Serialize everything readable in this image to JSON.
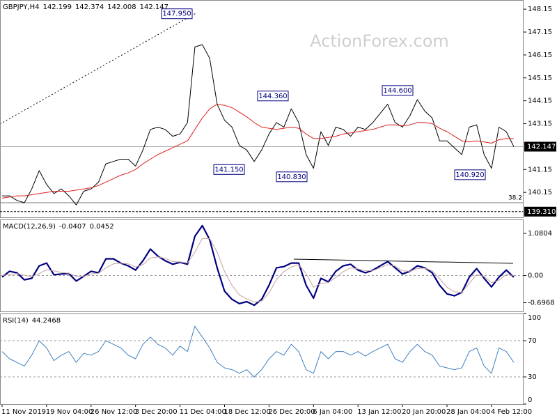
{
  "watermark": "ActionForex.com",
  "chart_data": [
    {
      "type": "line",
      "title": "GBPJPY,H4",
      "ohlc": [
        142.199,
        142.374,
        142.008,
        142.147
      ],
      "categories": [
        "11 Nov 2019",
        null,
        null,
        null,
        null,
        null,
        "19 Nov 04:00",
        null,
        null,
        null,
        null,
        null,
        "26 Nov 12:00",
        null,
        null,
        null,
        null,
        null,
        "3 Dec 20:00",
        null,
        null,
        null,
        null,
        null,
        "11 Dec 04:00",
        null,
        null,
        null,
        null,
        null,
        "18 Dec 12:00",
        null,
        null,
        null,
        null,
        null,
        "26 Dec 20:00",
        null,
        null,
        null,
        null,
        null,
        "6 Jan 04:00",
        null,
        null,
        null,
        null,
        null,
        "13 Jan 12:00",
        null,
        null,
        null,
        null,
        null,
        "20 Jan 20:00",
        null,
        null,
        null,
        null,
        null,
        "28 Jan 04:00",
        null,
        null,
        null,
        null,
        null,
        "4 Feb 12:00",
        null,
        null,
        null
      ],
      "series": [
        {
          "color": "#000000",
          "values": [
            140.0,
            140.0,
            139.8,
            139.7,
            140.3,
            141.1,
            140.5,
            140.1,
            140.3,
            140.0,
            139.6,
            140.2,
            140.3,
            140.6,
            141.4,
            141.5,
            141.6,
            141.6,
            141.3,
            142.0,
            142.9,
            143.0,
            142.9,
            142.6,
            142.7,
            143.2,
            146.5,
            146.6,
            146.0,
            144.0,
            143.3,
            143.0,
            142.2,
            142.0,
            141.5,
            142.0,
            142.7,
            143.2,
            143.0,
            143.8,
            143.2,
            141.8,
            141.2,
            142.8,
            142.2,
            143.0,
            142.9,
            142.6,
            143.0,
            142.9,
            143.2,
            143.6,
            144.0,
            143.2,
            143.0,
            143.5,
            144.2,
            143.7,
            143.4,
            142.4,
            142.4,
            142.1,
            141.8,
            143.0,
            143.1,
            141.8,
            141.2,
            143.0,
            142.8,
            142.15
          ]
        },
        {
          "color": "#e0201c",
          "values": [
            139.9,
            139.95,
            140.0,
            140.0,
            140.05,
            140.1,
            140.15,
            140.2,
            140.2,
            140.2,
            140.25,
            140.3,
            140.35,
            140.45,
            140.6,
            140.75,
            140.9,
            141.0,
            141.15,
            141.4,
            141.6,
            141.8,
            141.95,
            142.1,
            142.25,
            142.4,
            142.9,
            143.4,
            143.8,
            144.0,
            143.95,
            143.85,
            143.65,
            143.45,
            143.2,
            143.0,
            142.95,
            142.9,
            142.95,
            143.0,
            142.95,
            142.7,
            142.5,
            142.5,
            142.55,
            142.6,
            142.7,
            142.75,
            142.8,
            142.85,
            142.9,
            143.0,
            143.1,
            143.1,
            143.05,
            143.1,
            143.2,
            143.2,
            143.15,
            142.95,
            142.8,
            142.6,
            142.4,
            142.35,
            142.4,
            142.35,
            142.3,
            142.45,
            142.5,
            142.5
          ]
        }
      ],
      "ylim": [
        139.06,
        148.55
      ],
      "yticks": [
        148.15,
        147.15,
        146.15,
        145.15,
        144.15,
        143.15,
        141.15,
        140.15
      ],
      "current_price": 142.147,
      "levels": [
        {
          "value": 139.7,
          "label": "38.2"
        },
        {
          "value": 139.31,
          "label": "139.310"
        }
      ],
      "annotations": [
        {
          "value": 147.95,
          "label": "147.950"
        },
        {
          "value": 144.36,
          "label": "144.360"
        },
        {
          "value": 144.6,
          "label": "144.600"
        },
        {
          "value": 141.15,
          "label": "141.150"
        },
        {
          "value": 140.83,
          "label": "140.830"
        },
        {
          "value": 140.92,
          "label": "140.920"
        }
      ]
    },
    {
      "type": "line",
      "title": "MACD(12,26,9)",
      "readings": [
        -0.0407,
        0.0452
      ],
      "series": [
        {
          "color": "#000080",
          "values": [
            -0.04,
            0.11,
            0.07,
            -0.11,
            -0.07,
            0.25,
            0.32,
            0.02,
            0.04,
            0.05,
            -0.14,
            -0.02,
            0.11,
            0.07,
            0.43,
            0.43,
            0.32,
            0.25,
            0.14,
            0.38,
            0.68,
            0.5,
            0.38,
            0.29,
            0.34,
            0.29,
            1.01,
            1.28,
            0.92,
            0.2,
            -0.4,
            -0.61,
            -0.72,
            -0.67,
            -0.76,
            -0.61,
            -0.25,
            0.2,
            0.23,
            0.32,
            0.32,
            -0.25,
            -0.58,
            -0.07,
            -0.16,
            0.11,
            0.25,
            0.29,
            0.14,
            0.07,
            0.14,
            0.25,
            0.36,
            0.2,
            0.04,
            0.11,
            0.25,
            0.2,
            0.07,
            -0.25,
            -0.47,
            -0.52,
            -0.43,
            -0.04,
            0.18,
            -0.07,
            -0.29,
            -0.04,
            0.14,
            -0.04
          ]
        },
        {
          "color": "#c8a0a0",
          "values": [
            0.0,
            0.03,
            0.05,
            0.01,
            -0.03,
            0.05,
            0.15,
            0.12,
            0.08,
            0.06,
            -0.02,
            -0.02,
            0.04,
            0.06,
            0.2,
            0.3,
            0.32,
            0.3,
            0.22,
            0.28,
            0.45,
            0.48,
            0.44,
            0.36,
            0.35,
            0.32,
            0.6,
            0.95,
            0.95,
            0.6,
            0.1,
            -0.25,
            -0.5,
            -0.6,
            -0.68,
            -0.65,
            -0.45,
            -0.1,
            0.1,
            0.22,
            0.28,
            0.05,
            -0.3,
            -0.2,
            -0.18,
            -0.05,
            0.1,
            0.2,
            0.17,
            0.12,
            0.13,
            0.2,
            0.28,
            0.24,
            0.12,
            0.11,
            0.18,
            0.19,
            0.12,
            -0.08,
            -0.3,
            -0.42,
            -0.43,
            -0.2,
            0.02,
            -0.02,
            -0.18,
            -0.12,
            0.03,
            0.0
          ]
        }
      ],
      "ylim": [
        -0.92,
        1.44
      ],
      "yticks": [
        1.0804,
        {
          "value": 0,
          "label": "0.00"
        },
        -0.6968
      ],
      "level_lines": [
        0
      ]
    },
    {
      "type": "line",
      "title": "RSI(14)",
      "readings": [
        44.2468
      ],
      "series": [
        {
          "color": "#3f7fc0",
          "values": [
            58,
            50,
            46,
            42,
            54,
            70,
            62,
            48,
            54,
            58,
            46,
            56,
            54,
            58,
            70,
            66,
            62,
            54,
            50,
            66,
            74,
            66,
            62,
            54,
            64,
            58,
            86,
            74,
            62,
            46,
            40,
            38,
            34,
            38,
            30,
            38,
            50,
            58,
            54,
            66,
            58,
            38,
            34,
            58,
            50,
            58,
            58,
            54,
            58,
            53,
            58,
            62,
            66,
            50,
            46,
            58,
            66,
            58,
            54,
            42,
            40,
            38,
            40,
            58,
            62,
            42,
            34,
            62,
            58,
            46
          ]
        }
      ],
      "ylim": [
        0,
        100
      ],
      "yticks": [
        100,
        70,
        30,
        0
      ],
      "level_lines": [
        70,
        30
      ]
    }
  ]
}
